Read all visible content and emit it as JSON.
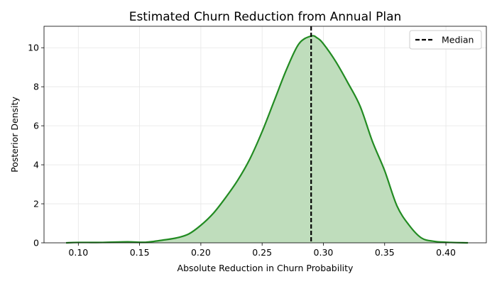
{
  "chart_data": {
    "type": "area",
    "title": "Estimated Churn Reduction from Annual Plan",
    "xlabel": "Absolute Reduction in Churn Probability",
    "ylabel": "Posterior Density",
    "xlim": [
      0.072,
      0.433
    ],
    "ylim": [
      0,
      11.1
    ],
    "x_ticks": [
      "0.10",
      "0.15",
      "0.20",
      "0.25",
      "0.30",
      "0.35",
      "0.40"
    ],
    "y_ticks": [
      "0",
      "2",
      "4",
      "6",
      "8",
      "10"
    ],
    "grid": true,
    "legend_position": "top-right",
    "colors": {
      "line": "#228B22",
      "fill": "#BFDDBC",
      "median": "#000000"
    },
    "series": [
      {
        "x": [
          0.09,
          0.1,
          0.12,
          0.14,
          0.155,
          0.17,
          0.18,
          0.19,
          0.2,
          0.21,
          0.22,
          0.23,
          0.24,
          0.25,
          0.26,
          0.27,
          0.28,
          0.29,
          0.295,
          0.3,
          0.31,
          0.32,
          0.33,
          0.34,
          0.35,
          0.36,
          0.37,
          0.38,
          0.39,
          0.4,
          0.418
        ],
        "values": [
          0.0,
          0.02,
          0.02,
          0.05,
          0.03,
          0.15,
          0.25,
          0.45,
          0.9,
          1.5,
          2.3,
          3.2,
          4.3,
          5.7,
          7.3,
          8.9,
          10.2,
          10.6,
          10.5,
          10.2,
          9.3,
          8.2,
          7.0,
          5.2,
          3.7,
          1.9,
          0.9,
          0.25,
          0.08,
          0.03,
          0.0
        ]
      }
    ],
    "median": {
      "name": "Median",
      "x": 0.29
    }
  }
}
